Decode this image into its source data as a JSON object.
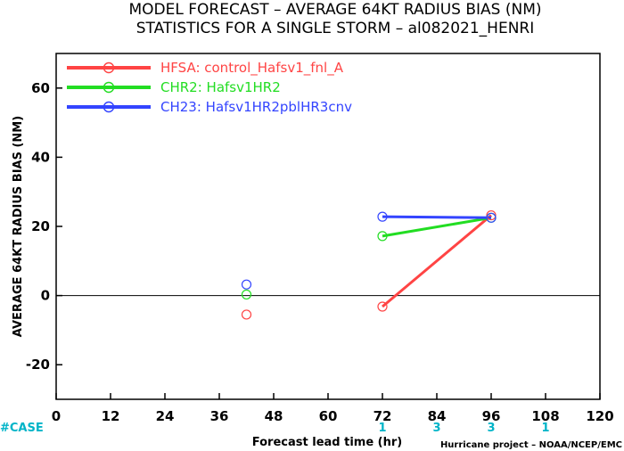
{
  "chart_data": {
    "type": "line",
    "title": "MODEL FORECAST – AVERAGE 64KT RADIUS BIAS (NM)",
    "subtitle": "STATISTICS FOR A SINGLE STORM – al082021_HENRI",
    "xlabel": "Forecast lead time (hr)",
    "ylabel": "AVERAGE 64KT RADIUS BIAS (NM)",
    "xlim": [
      0,
      120
    ],
    "ylim": [
      -30,
      70
    ],
    "xticks": [
      0,
      12,
      24,
      36,
      48,
      60,
      72,
      84,
      96,
      108,
      120
    ],
    "yticks": [
      -20,
      0,
      20,
      40,
      60
    ],
    "zero_line": true,
    "legend_position": "top-left",
    "series": [
      {
        "name": "HFSA: control_Hafsv1_fnl_A",
        "color": "#ff4444",
        "x": [
          42,
          72,
          96
        ],
        "y": [
          -5.5,
          -3.2,
          23.2
        ]
      },
      {
        "name": "CHR2: Hafsv1HR2",
        "color": "#22dd22",
        "x": [
          42,
          72,
          96
        ],
        "y": [
          0.3,
          17.2,
          22.5
        ]
      },
      {
        "name": "CH23: Hafsv1HR2pblHR3cnv",
        "color": "#3344ff",
        "x": [
          42,
          72,
          96
        ],
        "y": [
          3.2,
          22.8,
          22.5
        ]
      }
    ],
    "case_label": "#CASE",
    "case_counts": [
      {
        "x": 72,
        "count": "1"
      },
      {
        "x": 84,
        "count": "3"
      },
      {
        "x": 96,
        "count": "3"
      },
      {
        "x": 108,
        "count": "1"
      }
    ],
    "case_color": "#00b4c8",
    "credit": "Hurricane project – NOAA/NCEP/EMC"
  }
}
